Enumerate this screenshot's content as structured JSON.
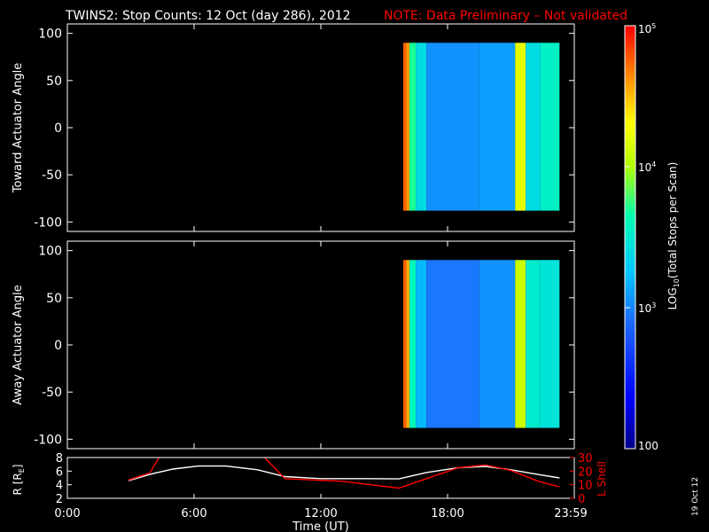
{
  "title": "TWINS2: Stop Counts: 12 Oct (day 286), 2012",
  "note": "NOTE: Data Preliminary – Not validated",
  "note_color": "#ff0000",
  "date_stamp": "19 Oct 12",
  "colors": {
    "axis": "#ffffff",
    "r_line": "#ffffff",
    "l_shell_line": "#ff0000",
    "background": "#000000"
  },
  "colorbar": {
    "label": "LOG10(Total Stops per Scan)",
    "label_base": "LOG",
    "label_sub": "10",
    "label_rest": "(Total Stops per Scan)",
    "scale": "log",
    "range": [
      100,
      100000
    ],
    "ticks": [
      {
        "value": 100,
        "text": "100"
      },
      {
        "value": 1000,
        "text": "10",
        "sup": "3"
      },
      {
        "value": 10000,
        "text": "10",
        "sup": "4"
      },
      {
        "value": 100000,
        "text": "10",
        "sup": "5"
      }
    ]
  },
  "x_axis": {
    "label": "Time (UT)",
    "ticks": [
      {
        "hour": 0,
        "text": "0:00"
      },
      {
        "hour": 6,
        "text": "6:00"
      },
      {
        "hour": 12,
        "text": "12:00"
      },
      {
        "hour": 18,
        "text": "18:00"
      },
      {
        "hour": 24,
        "text": "23:59"
      }
    ]
  },
  "chart_data": [
    {
      "type": "heatmap",
      "ylabel": "Toward Actuator Angle",
      "xlim_hours": [
        0,
        24
      ],
      "ylim": [
        -110,
        110
      ],
      "yticks": [
        100,
        50,
        0,
        -50,
        -100
      ],
      "data_time_range_hours": [
        15.9,
        23.3
      ],
      "angle_range": [
        -88,
        90
      ],
      "columns": [
        {
          "t": [
            15.9,
            16.05
          ],
          "level": 4.75
        },
        {
          "t": [
            16.05,
            16.2
          ],
          "level": 4.6
        },
        {
          "t": [
            16.2,
            16.5
          ],
          "level": 3.7
        },
        {
          "t": [
            16.5,
            17.0
          ],
          "level": 3.4
        },
        {
          "t": [
            17.0,
            19.5
          ],
          "level": 3.05
        },
        {
          "t": [
            19.5,
            21.2
          ],
          "level": 3.1
        },
        {
          "t": [
            21.2,
            21.7
          ],
          "level": 4.2
        },
        {
          "t": [
            21.7,
            22.4
          ],
          "level": 3.4
        },
        {
          "t": [
            22.4,
            23.3
          ],
          "level": 3.55
        }
      ]
    },
    {
      "type": "heatmap",
      "ylabel": "Away Actuator Angle",
      "xlim_hours": [
        0,
        24
      ],
      "ylim": [
        -110,
        110
      ],
      "yticks": [
        100,
        50,
        0,
        -50,
        -100
      ],
      "data_time_range_hours": [
        15.9,
        23.3
      ],
      "angle_range": [
        -88,
        90
      ],
      "columns": [
        {
          "t": [
            15.9,
            16.05
          ],
          "level": 4.75
        },
        {
          "t": [
            16.05,
            16.2
          ],
          "level": 4.55
        },
        {
          "t": [
            16.2,
            16.5
          ],
          "level": 3.6
        },
        {
          "t": [
            16.5,
            17.0
          ],
          "level": 3.2
        },
        {
          "t": [
            17.0,
            19.5
          ],
          "level": 2.95
        },
        {
          "t": [
            19.5,
            21.2
          ],
          "level": 3.05
        },
        {
          "t": [
            21.2,
            21.7
          ],
          "level": 4.1
        },
        {
          "t": [
            21.7,
            22.4
          ],
          "level": 3.5
        },
        {
          "t": [
            22.4,
            23.3
          ],
          "level": 3.45
        }
      ]
    },
    {
      "type": "line",
      "ylabel": "R [RE]",
      "ylabel_base": "R [R",
      "ylabel_sub": "E",
      "ylabel_end": "]",
      "ylabel_right": "L Shell",
      "xlim_hours": [
        0,
        24
      ],
      "ylim_left": [
        2,
        8
      ],
      "yticks_left": [
        8,
        6,
        4,
        2
      ],
      "ylim_right": [
        0,
        30
      ],
      "yticks_right": [
        30,
        20,
        10,
        0
      ],
      "series": [
        {
          "name": "R [RE]",
          "axis": "left",
          "x": [
            2.9,
            4.0,
            5.0,
            6.2,
            7.5,
            9.0,
            10.3,
            12.0,
            14.0,
            15.7,
            17.0,
            18.5,
            19.8,
            21.0,
            22.3,
            23.3
          ],
          "y": [
            4.6,
            5.6,
            6.3,
            6.75,
            6.75,
            6.2,
            5.2,
            4.9,
            4.9,
            4.85,
            5.8,
            6.5,
            6.7,
            6.2,
            5.5,
            5.0
          ]
        },
        {
          "name": "L Shell",
          "axis": "right",
          "x": [
            2.9,
            3.9,
            4.45,
            9.15,
            10.3,
            13.0,
            15.7,
            17.0,
            18.5,
            19.8,
            21.0,
            22.3,
            23.3
          ],
          "y": [
            13.5,
            18.5,
            33,
            33,
            14.5,
            12.5,
            7.5,
            14.5,
            22.5,
            24.5,
            20.5,
            12.5,
            8.5
          ]
        }
      ]
    }
  ]
}
